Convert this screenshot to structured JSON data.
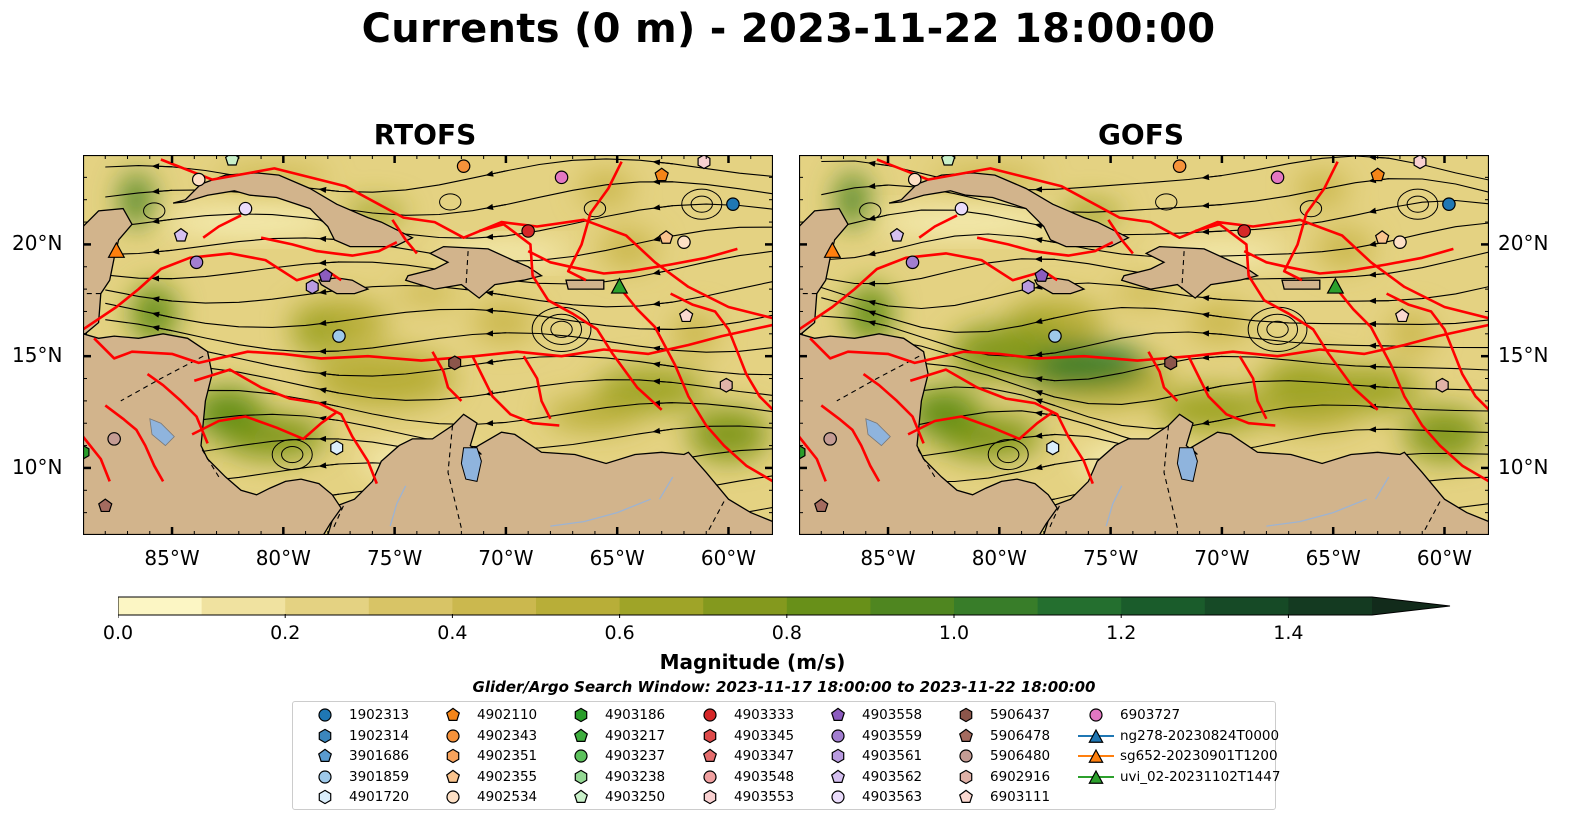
{
  "title": "Currents (0 m) - 2023-11-22 18:00:00",
  "panels": [
    {
      "title": "RTOFS"
    },
    {
      "title": "GOFS"
    }
  ],
  "lon_ticks": [
    "85°W",
    "80°W",
    "75°W",
    "70°W",
    "65°W",
    "60°W"
  ],
  "lat_ticks": [
    "20°N",
    "15°N",
    "10°N"
  ],
  "map_extent": {
    "lon": [
      -89,
      -58
    ],
    "lat": [
      7,
      24
    ]
  },
  "colorbar": {
    "label": "Magnitude (m/s)",
    "ticks": [
      "0.0",
      "0.2",
      "0.4",
      "0.6",
      "0.8",
      "1.0",
      "1.2",
      "1.4"
    ],
    "range": [
      0,
      1.5
    ],
    "colors": [
      "#fcf6c4",
      "#f0e2a0",
      "#e4d282",
      "#d8c466",
      "#cbb84e",
      "#b8ae38",
      "#9fa428",
      "#84991e",
      "#689019",
      "#4f8620",
      "#387d29",
      "#246f2f",
      "#1a5c2b",
      "#164a26",
      "#143a21",
      "#122b1b"
    ],
    "extend": "max"
  },
  "search_window": "Glider/Argo Search Window: 2023-11-17 18:00:00 to 2023-11-22 18:00:00",
  "colors": {
    "land": "#d2b48c",
    "coast": "#000000",
    "tracks": "#ff0000",
    "lakes": "#8fb4dd",
    "rivers": "#9db3d2"
  },
  "legend": [
    {
      "label": "1902313",
      "marker": "circle",
      "color": "#1f77b4"
    },
    {
      "label": "1902314",
      "marker": "hexagon",
      "color": "#3b86bd"
    },
    {
      "label": "3901686",
      "marker": "pentagon",
      "color": "#5a9bd0"
    },
    {
      "label": "3901859",
      "marker": "circle",
      "color": "#9ec9ea"
    },
    {
      "label": "4901720",
      "marker": "hexagon",
      "color": "#dbeefb"
    },
    {
      "label": "4902110",
      "marker": "pentagon",
      "color": "#f58518"
    },
    {
      "label": "4902343",
      "marker": "circle",
      "color": "#f6923a"
    },
    {
      "label": "4902351",
      "marker": "hexagon",
      "color": "#f8a35c"
    },
    {
      "label": "4902355",
      "marker": "pentagon",
      "color": "#fac48e"
    },
    {
      "label": "4902534",
      "marker": "circle",
      "color": "#fde0c5"
    },
    {
      "label": "4903186",
      "marker": "hexagon",
      "color": "#2a9d2a"
    },
    {
      "label": "4903217",
      "marker": "pentagon",
      "color": "#3fae3f"
    },
    {
      "label": "4903237",
      "marker": "circle",
      "color": "#5cc15c"
    },
    {
      "label": "4903238",
      "marker": "hexagon",
      "color": "#94d894"
    },
    {
      "label": "4903250",
      "marker": "pentagon",
      "color": "#c9f0c9"
    },
    {
      "label": "4903333",
      "marker": "circle",
      "color": "#d62728"
    },
    {
      "label": "4903345",
      "marker": "hexagon",
      "color": "#de4a4a"
    },
    {
      "label": "4903347",
      "marker": "pentagon",
      "color": "#e46d6d"
    },
    {
      "label": "4903548",
      "marker": "circle",
      "color": "#f0a0a0"
    },
    {
      "label": "4903553",
      "marker": "hexagon",
      "color": "#f8d0d0"
    },
    {
      "label": "4903558",
      "marker": "pentagon",
      "color": "#8c5cbf"
    },
    {
      "label": "4903559",
      "marker": "circle",
      "color": "#a27ed0"
    },
    {
      "label": "4903561",
      "marker": "hexagon",
      "color": "#b99be0"
    },
    {
      "label": "4903562",
      "marker": "pentagon",
      "color": "#d5c0f0"
    },
    {
      "label": "4903563",
      "marker": "circle",
      "color": "#eadcfb"
    },
    {
      "label": "5906437",
      "marker": "hexagon",
      "color": "#8c564b"
    },
    {
      "label": "5906478",
      "marker": "pentagon",
      "color": "#a46b5f"
    },
    {
      "label": "5906480",
      "marker": "circle",
      "color": "#c49c94"
    },
    {
      "label": "6902916",
      "marker": "hexagon",
      "color": "#e0b2a8"
    },
    {
      "label": "6903111",
      "marker": "pentagon",
      "color": "#fbd8d0"
    },
    {
      "label": "6903727",
      "marker": "circle",
      "color": "#e377c2"
    },
    {
      "label": "ng278-20230824T0000",
      "marker": "triangle-line",
      "color": "#1f77b4"
    },
    {
      "label": "sg652-20230901T1200",
      "marker": "triangle-line",
      "color": "#ff7f0e"
    },
    {
      "label": "uvi_02-20231102T1447",
      "marker": "triangle-line",
      "color": "#2ca02c"
    }
  ],
  "floats": [
    {
      "lon": -59.8,
      "lat": 21.8,
      "color": "#1f77b4",
      "marker": "circle"
    },
    {
      "lon": -63.0,
      "lat": 23.1,
      "color": "#f58518",
      "marker": "pentagon"
    },
    {
      "lon": -71.9,
      "lat": 23.5,
      "color": "#f6923a",
      "marker": "circle"
    },
    {
      "lon": -62.0,
      "lat": 20.1,
      "color": "#fde0c5",
      "marker": "circle"
    },
    {
      "lon": -62.8,
      "lat": 20.3,
      "color": "#fac48e",
      "marker": "pentagon"
    },
    {
      "lon": -82.3,
      "lat": 23.8,
      "color": "#c9f0c9",
      "marker": "pentagon"
    },
    {
      "lon": -89.0,
      "lat": 10.7,
      "color": "#2a9d2a",
      "marker": "hexagon"
    },
    {
      "lon": -69.0,
      "lat": 20.6,
      "color": "#d62728",
      "marker": "circle"
    },
    {
      "lon": -67.5,
      "lat": 23.0,
      "color": "#e377c2",
      "marker": "circle"
    },
    {
      "lon": -61.1,
      "lat": 23.7,
      "color": "#f8d0d0",
      "marker": "hexagon"
    },
    {
      "lon": -81.7,
      "lat": 21.6,
      "color": "#eadcfb",
      "marker": "circle"
    },
    {
      "lon": -83.8,
      "lat": 22.9,
      "color": "#fde0c5",
      "marker": "circle"
    },
    {
      "lon": -84.6,
      "lat": 20.4,
      "color": "#d5c0f0",
      "marker": "pentagon"
    },
    {
      "lon": -83.9,
      "lat": 19.2,
      "color": "#a27ed0",
      "marker": "circle"
    },
    {
      "lon": -78.1,
      "lat": 18.6,
      "color": "#8c5cbf",
      "marker": "pentagon"
    },
    {
      "lon": -78.7,
      "lat": 18.1,
      "color": "#b99be0",
      "marker": "hexagon"
    },
    {
      "lon": -77.5,
      "lat": 15.9,
      "color": "#9ec9ea",
      "marker": "circle"
    },
    {
      "lon": -77.6,
      "lat": 10.9,
      "color": "#dbeefb",
      "marker": "hexagon"
    },
    {
      "lon": -72.3,
      "lat": 14.7,
      "color": "#8c564b",
      "marker": "hexagon"
    },
    {
      "lon": -87.6,
      "lat": 11.3,
      "color": "#c49c94",
      "marker": "circle"
    },
    {
      "lon": -88.0,
      "lat": 8.3,
      "color": "#a46b5f",
      "marker": "pentagon"
    },
    {
      "lon": -61.9,
      "lat": 16.8,
      "color": "#fbd8d0",
      "marker": "pentagon"
    },
    {
      "lon": -60.1,
      "lat": 13.7,
      "color": "#e0b2a8",
      "marker": "hexagon"
    }
  ],
  "gliders": [
    {
      "lon": -87.5,
      "lat": 19.7,
      "color": "#ff7f0e"
    },
    {
      "lon": -64.9,
      "lat": 18.1,
      "color": "#2ca02c"
    }
  ]
}
